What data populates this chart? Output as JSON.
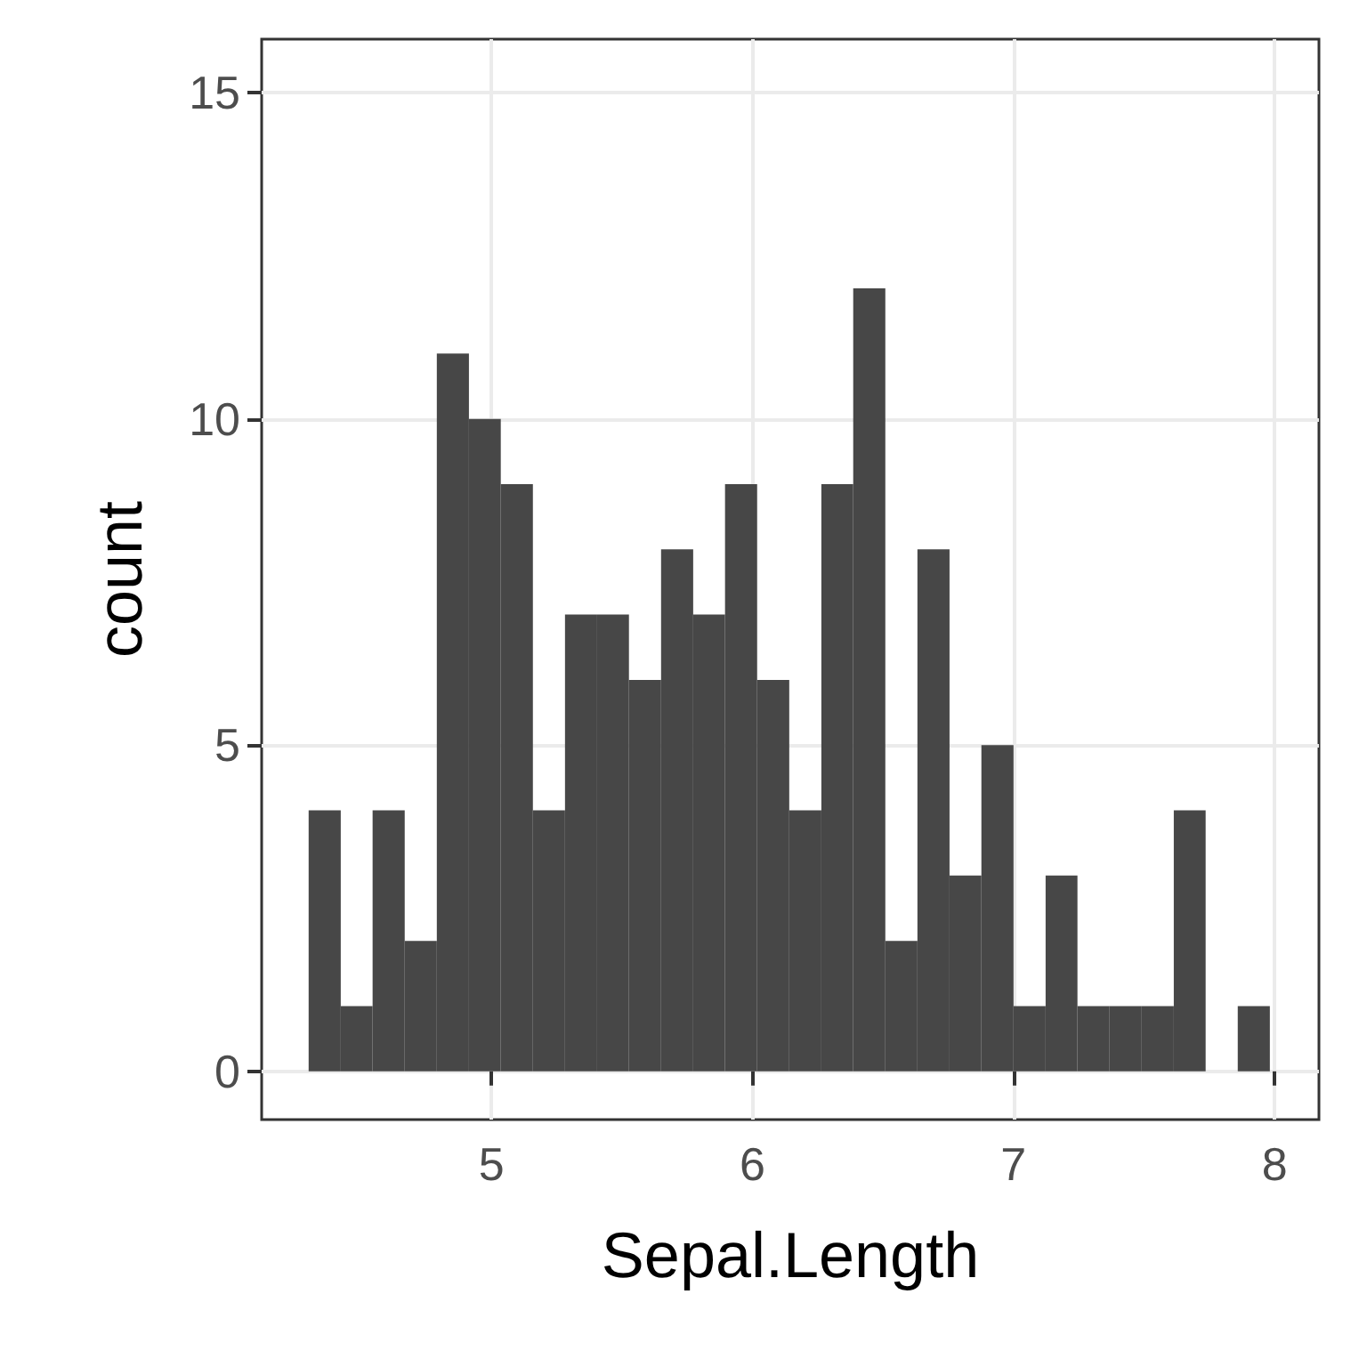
{
  "chart_data": {
    "type": "histogram",
    "xlabel": "Sepal.Length",
    "ylabel": "count",
    "color": "#474747",
    "bins": [
      4.3,
      4.423,
      4.545,
      4.668,
      4.791,
      4.914,
      5.036,
      5.159,
      5.282,
      5.405,
      5.527,
      5.65,
      5.773,
      5.895,
      6.018,
      6.141,
      6.264,
      6.386,
      6.509,
      6.632,
      6.755,
      6.877,
      7.0,
      7.123,
      7.245,
      7.368,
      7.491,
      7.614,
      7.736,
      7.859,
      7.982
    ],
    "values": [
      4,
      1,
      4,
      2,
      11,
      10,
      9,
      4,
      7,
      7,
      6,
      8,
      7,
      9,
      6,
      4,
      9,
      12,
      2,
      8,
      3,
      5,
      1,
      3,
      1,
      1,
      1,
      4,
      0,
      1
    ],
    "xlim": [
      4.12,
      8.17
    ],
    "ylim": [
      -0.74,
      15.82
    ],
    "xticks": [
      5,
      6,
      7,
      8
    ],
    "yticks": [
      0,
      5,
      10,
      15
    ],
    "grid": true
  }
}
